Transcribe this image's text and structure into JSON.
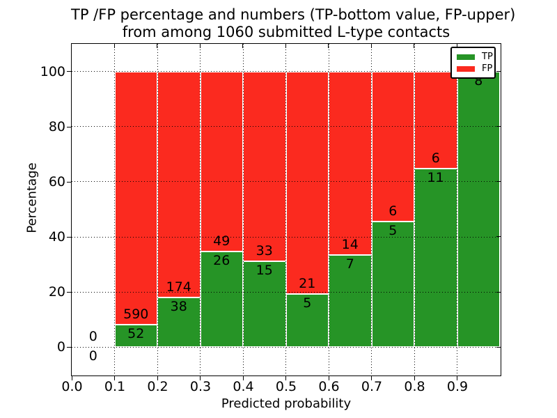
{
  "title": {
    "line1": "TP /FP percentage and numbers (TP-bottom value, FP-upper)",
    "line2": "from among 1060 submitted L-type contacts"
  },
  "axes": {
    "xlabel": "Predicted probability",
    "ylabel": "Percentage",
    "x_ticks": [
      {
        "value": 0.0,
        "label": "0.0"
      },
      {
        "value": 0.1,
        "label": "0.1"
      },
      {
        "value": 0.2,
        "label": "0.2"
      },
      {
        "value": 0.3,
        "label": "0.3"
      },
      {
        "value": 0.4,
        "label": "0.4"
      },
      {
        "value": 0.5,
        "label": "0.5"
      },
      {
        "value": 0.6,
        "label": "0.6"
      },
      {
        "value": 0.7,
        "label": "0.7"
      },
      {
        "value": 0.8,
        "label": "0.8"
      },
      {
        "value": 0.9,
        "label": "0.9"
      }
    ],
    "y_ticks": [
      {
        "value": 0,
        "label": "0"
      },
      {
        "value": 20,
        "label": "20"
      },
      {
        "value": 40,
        "label": "40"
      },
      {
        "value": 60,
        "label": "60"
      },
      {
        "value": 80,
        "label": "80"
      },
      {
        "value": 100,
        "label": "100"
      }
    ]
  },
  "legend": {
    "items": [
      {
        "label": "TP",
        "color": "#269426"
      },
      {
        "label": "FP",
        "color": "#fb2a1f"
      }
    ]
  },
  "colors": {
    "tp_green": "#269426",
    "fp_red": "#fb2a1f",
    "grid": "#000000",
    "text": "#000000",
    "background": "#ffffff"
  },
  "chart_data": {
    "type": "bar",
    "stacked": true,
    "units": "percent of bin, annotated with raw counts",
    "title": "TP /FP percentage and numbers (TP-bottom value, FP-upper) from among 1060 submitted L-type contacts",
    "xlabel": "Predicted probability",
    "ylabel": "Percentage",
    "total_contacts": 1060,
    "categories": [
      "0.0-0.1",
      "0.1-0.2",
      "0.2-0.3",
      "0.3-0.4",
      "0.4-0.5",
      "0.5-0.6",
      "0.6-0.7",
      "0.7-0.8",
      "0.8-0.9",
      "0.9-1.0"
    ],
    "bin_starts": [
      0.0,
      0.1,
      0.2,
      0.3,
      0.4,
      0.5,
      0.6,
      0.7,
      0.8,
      0.9
    ],
    "bin_width": 0.1,
    "series": [
      {
        "name": "TP",
        "color": "#269426",
        "counts": [
          0,
          52,
          38,
          26,
          15,
          5,
          7,
          5,
          11,
          8
        ],
        "percent": [
          0,
          8.1,
          17.92,
          34.67,
          31.25,
          19.23,
          33.33,
          45.45,
          64.71,
          100
        ]
      },
      {
        "name": "FP",
        "color": "#fb2a1f",
        "counts": [
          0,
          590,
          174,
          49,
          33,
          21,
          14,
          6,
          6,
          0
        ],
        "percent": [
          0,
          91.9,
          82.08,
          65.33,
          68.75,
          80.77,
          66.67,
          54.55,
          35.29,
          0
        ]
      }
    ],
    "annotation_note": "FP count printed above each green-bar top line, TP count printed below it",
    "xlim": [
      0.0,
      1.0
    ],
    "ylim": [
      -10,
      110
    ],
    "x_tick_values": [
      0.0,
      0.1,
      0.2,
      0.3,
      0.4,
      0.5,
      0.6,
      0.7,
      0.8,
      0.9
    ],
    "y_tick_values": [
      0,
      20,
      40,
      60,
      80,
      100
    ],
    "grid": "dotted",
    "legend_position": "upper right"
  }
}
